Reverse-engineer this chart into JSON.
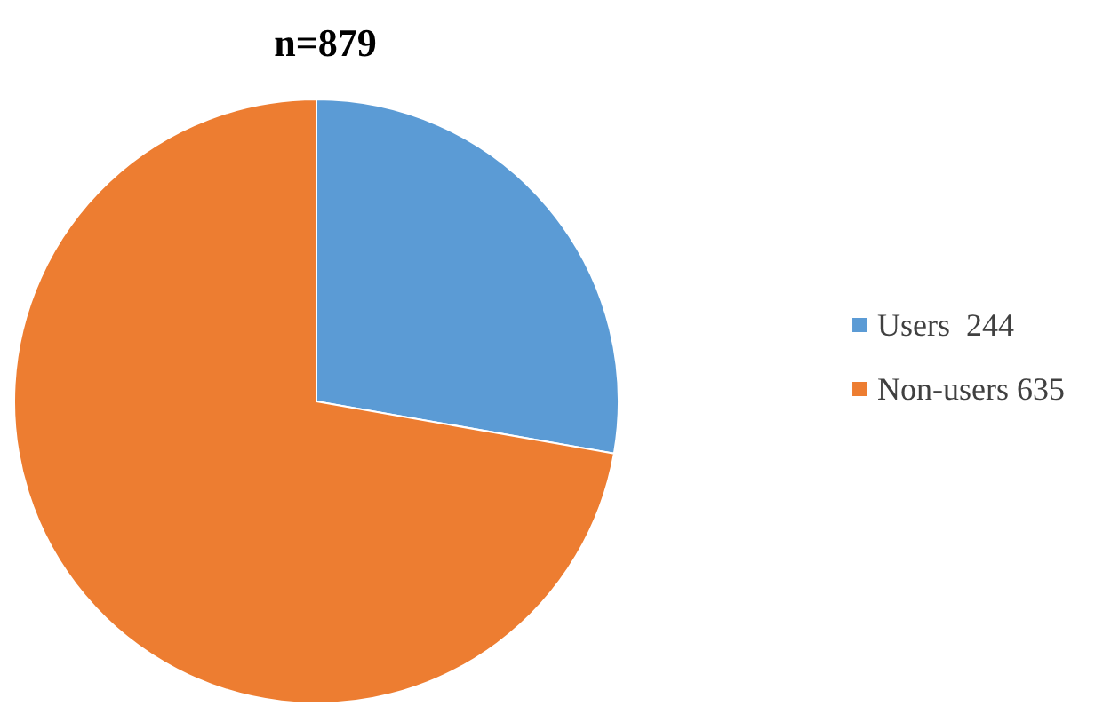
{
  "chart_data": {
    "type": "pie",
    "title": "n=879",
    "categories": [
      "Users  244",
      "Non-users 635"
    ],
    "values": [
      244,
      635
    ],
    "colors": [
      "#5b9bd5",
      "#ed7d31"
    ],
    "legend": "right"
  }
}
